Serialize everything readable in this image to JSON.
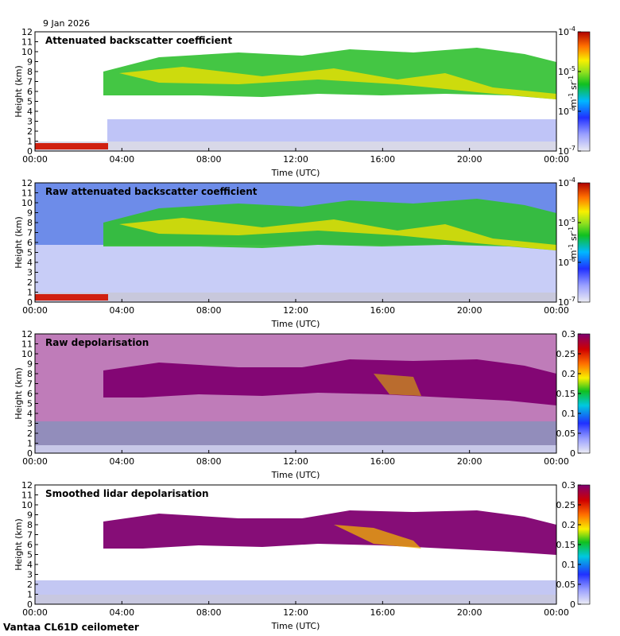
{
  "date": "9 Jan 2026",
  "footer": "Vantaa CL61D ceilometer",
  "chart_data": [
    {
      "type": "heatmap",
      "title": "Attenuated backscatter coefficient",
      "xlabel": "Time (UTC)",
      "ylabel": "Height (km)",
      "xticks": [
        "00:00",
        "04:00",
        "08:00",
        "12:00",
        "16:00",
        "20:00",
        "00:00"
      ],
      "yticks": [
        "0",
        "1",
        "2",
        "3",
        "4",
        "5",
        "6",
        "7",
        "8",
        "9",
        "10",
        "11",
        "12"
      ],
      "ylim": [
        0,
        12
      ],
      "colorbar": {
        "scale": "log",
        "range": [
          1e-07,
          0.0001
        ],
        "ticks": [
          {
            "b": "10",
            "e": "-4"
          },
          {
            "b": "10",
            "e": "-5"
          },
          {
            "b": "10",
            "e": "-6"
          },
          {
            "b": "10",
            "e": "-7"
          }
        ],
        "unit": "m-1 sr-1"
      }
    },
    {
      "type": "heatmap",
      "title": "Raw attenuated backscatter coefficient",
      "xlabel": "Time (UTC)",
      "ylabel": "Height (km)",
      "xticks": [
        "00:00",
        "04:00",
        "08:00",
        "12:00",
        "16:00",
        "20:00",
        "00:00"
      ],
      "yticks": [
        "0",
        "1",
        "2",
        "3",
        "4",
        "5",
        "6",
        "7",
        "8",
        "9",
        "10",
        "11",
        "12"
      ],
      "ylim": [
        0,
        12
      ],
      "colorbar": {
        "scale": "log",
        "range": [
          1e-07,
          0.0001
        ],
        "ticks": [
          {
            "b": "10",
            "e": "-4"
          },
          {
            "b": "10",
            "e": "-5"
          },
          {
            "b": "10",
            "e": "-6"
          },
          {
            "b": "10",
            "e": "-7"
          }
        ],
        "unit": "m-1 sr-1"
      }
    },
    {
      "type": "heatmap",
      "title": "Raw depolarisation",
      "xlabel": "Time (UTC)",
      "ylabel": "Height (km)",
      "xticks": [
        "00:00",
        "04:00",
        "08:00",
        "12:00",
        "16:00",
        "20:00",
        "00:00"
      ],
      "yticks": [
        "0",
        "1",
        "2",
        "3",
        "4",
        "5",
        "6",
        "7",
        "8",
        "9",
        "10",
        "11",
        "12"
      ],
      "ylim": [
        0,
        12
      ],
      "colorbar": {
        "scale": "linear",
        "range": [
          0,
          0.3
        ],
        "ticks": [
          "0.3",
          "0.25",
          "0.2",
          "0.15",
          "0.1",
          "0.05",
          "0"
        ]
      }
    },
    {
      "type": "heatmap",
      "title": "Smoothed lidar depolarisation",
      "xlabel": "Time (UTC)",
      "ylabel": "Height (km)",
      "xticks": [
        "00:00",
        "04:00",
        "08:00",
        "12:00",
        "16:00",
        "20:00",
        "00:00"
      ],
      "yticks": [
        "0",
        "1",
        "2",
        "3",
        "4",
        "5",
        "6",
        "7",
        "8",
        "9",
        "10",
        "11",
        "12"
      ],
      "ylim": [
        0,
        12
      ],
      "colorbar": {
        "scale": "linear",
        "range": [
          0,
          0.3
        ],
        "ticks": [
          "0.3",
          "0.25",
          "0.2",
          "0.15",
          "0.1",
          "0.05",
          "0"
        ]
      }
    }
  ]
}
